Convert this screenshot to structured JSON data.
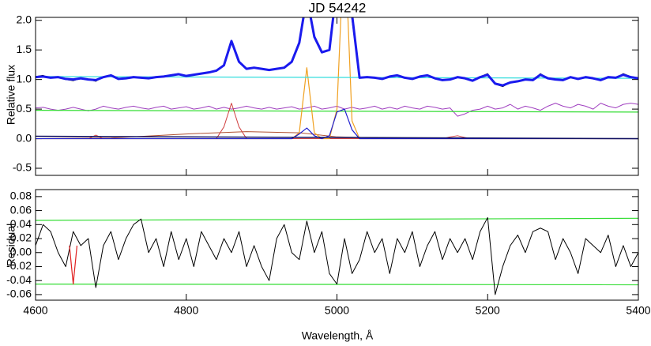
{
  "chart_data": [
    {
      "type": "line",
      "title": "JD 54242",
      "ylabel": "Relative flux",
      "xlim": [
        4600,
        5400
      ],
      "ylim": [
        -0.62,
        2.05
      ],
      "yticks": [
        -0.5,
        {
          "value": 0,
          "label": "0.0"
        },
        0.5,
        {
          "value": 1,
          "label": "1.0"
        },
        1.5,
        {
          "value": 2,
          "label": "2.0"
        }
      ],
      "x": [
        4600,
        4610,
        4620,
        4630,
        4640,
        4650,
        4660,
        4670,
        4680,
        4690,
        4700,
        4710,
        4720,
        4730,
        4740,
        4750,
        4760,
        4770,
        4780,
        4790,
        4800,
        4810,
        4820,
        4830,
        4840,
        4850,
        4860,
        4870,
        4880,
        4890,
        4900,
        4910,
        4920,
        4930,
        4940,
        4950,
        4960,
        4970,
        4980,
        4990,
        5000,
        5010,
        5020,
        5030,
        5040,
        5050,
        5060,
        5070,
        5080,
        5090,
        5100,
        5110,
        5120,
        5130,
        5140,
        5150,
        5160,
        5170,
        5180,
        5190,
        5200,
        5210,
        5220,
        5230,
        5240,
        5250,
        5260,
        5270,
        5280,
        5290,
        5300,
        5310,
        5320,
        5330,
        5340,
        5350,
        5360,
        5370,
        5380,
        5390,
        5400
      ],
      "series": [
        {
          "color": "#a040c0",
          "linewidth": 1,
          "values": [
            0.52,
            0.53,
            0.5,
            0.48,
            0.5,
            0.53,
            0.5,
            0.47,
            0.5,
            0.55,
            0.52,
            0.5,
            0.53,
            0.55,
            0.52,
            0.5,
            0.53,
            0.55,
            0.5,
            0.52,
            0.54,
            0.5,
            0.52,
            0.55,
            0.5,
            0.53,
            0.5,
            0.52,
            0.55,
            0.52,
            0.5,
            0.53,
            0.5,
            0.52,
            0.54,
            0.5,
            0.52,
            0.55,
            0.5,
            0.52,
            0.55,
            0.5,
            0.53,
            0.5,
            0.52,
            0.55,
            0.5,
            0.53,
            0.5,
            0.55,
            0.52,
            0.5,
            0.55,
            0.53,
            0.5,
            0.52,
            0.38,
            0.42,
            0.48,
            0.5,
            0.55,
            0.5,
            0.52,
            0.58,
            0.5,
            0.55,
            0.52,
            0.48,
            0.55,
            0.6,
            0.55,
            0.52,
            0.58,
            0.55,
            0.5,
            0.6,
            0.55,
            0.52,
            0.58,
            0.6,
            0.58
          ]
        },
        {
          "color": "#33dd33",
          "linewidth": 1.2,
          "x": [
            4600,
            5400
          ],
          "values": [
            0.48,
            0.45
          ]
        },
        {
          "color": "#b05030",
          "linewidth": 1,
          "x": [
            4600,
            4700,
            4800,
            4880,
            4950,
            5000,
            5100,
            5200
          ],
          "values": [
            0,
            0.01,
            0.08,
            0.12,
            0.1,
            0.03,
            0,
            0
          ]
        },
        {
          "color": "#d04040",
          "linewidth": 1,
          "values": [
            0,
            0,
            0,
            0,
            0,
            0,
            0,
            0,
            0.06,
            0,
            0,
            0,
            0,
            0,
            0,
            0,
            0,
            0,
            0,
            0,
            0,
            0,
            0,
            0,
            0,
            0.2,
            0.6,
            0.2,
            0,
            0,
            0,
            0,
            0,
            0,
            0,
            0,
            0,
            0,
            0,
            0,
            0,
            0,
            0,
            0,
            0,
            0,
            0,
            0,
            0,
            0,
            0,
            0,
            0,
            0,
            0,
            0.03,
            0.05,
            0.02,
            0,
            0,
            0,
            0,
            0,
            0,
            0,
            0,
            0,
            0,
            0,
            0,
            0,
            0,
            0,
            0,
            0,
            0,
            0,
            0,
            0,
            0,
            0
          ]
        },
        {
          "color": "#f0a020",
          "linewidth": 1.2,
          "values": [
            0,
            0,
            0,
            0,
            0,
            0,
            0,
            0,
            0,
            0,
            0,
            0,
            0,
            0,
            0,
            0,
            0,
            0,
            0,
            0,
            0,
            0,
            0,
            0,
            0,
            0,
            0,
            0,
            0,
            0,
            0,
            0,
            0,
            0,
            0,
            0.1,
            1.2,
            0.1,
            0,
            0,
            0.5,
            3.5,
            0.3,
            0,
            0,
            0,
            0,
            0,
            0,
            0,
            0,
            0,
            0,
            0,
            0,
            0,
            0,
            0,
            0,
            0,
            0,
            0,
            0,
            0,
            0,
            0,
            0,
            0,
            0,
            0,
            0,
            0,
            0,
            0,
            0,
            0,
            0,
            0,
            0,
            0,
            0
          ]
        },
        {
          "color": "#2020d0",
          "linewidth": 1.2,
          "values": [
            0,
            0,
            0,
            0,
            0,
            0,
            0,
            0,
            0,
            0,
            0,
            0,
            0,
            0,
            0,
            0,
            0,
            0,
            0,
            0,
            0,
            0,
            0,
            0,
            0,
            0,
            0,
            0,
            0,
            0,
            0,
            0,
            0,
            0,
            0,
            0.08,
            0.18,
            0.05,
            0,
            0.05,
            0.45,
            0.5,
            0.15,
            0,
            0,
            0,
            0,
            0,
            0,
            0,
            0,
            0,
            0,
            0,
            0,
            0,
            0,
            0,
            0,
            0,
            0,
            0,
            0,
            0,
            0,
            0,
            0,
            0,
            0,
            0,
            0,
            0,
            0,
            0,
            0,
            0,
            0,
            0,
            0,
            0,
            0
          ]
        },
        {
          "color": "#101060",
          "linewidth": 1.5,
          "x": [
            4600,
            5000,
            5400
          ],
          "values": [
            0.04,
            0.02,
            0
          ]
        },
        {
          "color": "#33dddd",
          "linewidth": 1.2,
          "x": [
            4600,
            5400
          ],
          "values": [
            1.05,
            1.02
          ]
        },
        {
          "color": "#000000",
          "linewidth": 1,
          "values": [
            1.05,
            1.07,
            1.02,
            1.05,
            1.0,
            0.98,
            1.02,
            1.0,
            0.97,
            1.05,
            1.08,
            1.0,
            1.02,
            1.05,
            1.03,
            1.02,
            1.04,
            1.05,
            1.08,
            1.1,
            1.05,
            1.08,
            1.1,
            1.12,
            1.15,
            1.25,
            1.62,
            1.3,
            1.18,
            1.2,
            1.18,
            1.15,
            1.18,
            1.2,
            1.3,
            1.6,
            2.3,
            1.7,
            1.45,
            1.5,
            2.5,
            3.0,
            2.0,
            1.02,
            1.05,
            1.03,
            1.0,
            1.05,
            1.08,
            1.03,
            1.0,
            1.05,
            1.08,
            1.02,
            0.98,
            1.0,
            1.05,
            1.02,
            0.97,
            1.05,
            1.1,
            0.92,
            0.88,
            0.95,
            0.97,
            1.0,
            0.98,
            1.1,
            1.02,
            1.0,
            0.98,
            1.05,
            1.0,
            1.05,
            1.02,
            0.98,
            1.05,
            1.03,
            1.1,
            1.05,
            1.03
          ]
        },
        {
          "color": "#1a1aee",
          "linewidth": 3,
          "values": [
            1.04,
            1.05,
            1.03,
            1.04,
            1.01,
            1.0,
            1.02,
            1.0,
            0.99,
            1.04,
            1.07,
            1.01,
            1.02,
            1.04,
            1.03,
            1.02,
            1.04,
            1.05,
            1.07,
            1.09,
            1.06,
            1.08,
            1.1,
            1.12,
            1.15,
            1.24,
            1.65,
            1.3,
            1.18,
            1.2,
            1.18,
            1.16,
            1.18,
            1.2,
            1.3,
            1.62,
            2.4,
            1.72,
            1.46,
            1.5,
            2.6,
            3.2,
            2.1,
            1.03,
            1.04,
            1.03,
            1.01,
            1.05,
            1.07,
            1.03,
            1.01,
            1.05,
            1.07,
            1.02,
            0.99,
            1.0,
            1.04,
            1.02,
            0.98,
            1.04,
            1.08,
            0.93,
            0.9,
            0.95,
            0.97,
            1.0,
            0.99,
            1.08,
            1.02,
            1.0,
            0.99,
            1.04,
            1.01,
            1.04,
            1.02,
            0.99,
            1.04,
            1.03,
            1.08,
            1.04,
            1.02
          ]
        }
      ]
    },
    {
      "type": "line",
      "xlabel": "Wavelength, Å",
      "ylabel": "Residual",
      "xlim": [
        4600,
        5400
      ],
      "xticks": [
        4600,
        4800,
        5000,
        5200,
        5400
      ],
      "ylim": [
        -0.068,
        0.09
      ],
      "yticks": [
        -0.06,
        -0.04,
        -0.02,
        {
          "value": 0,
          "label": "0.00"
        },
        0.02,
        0.04,
        0.06,
        0.08
      ],
      "x": [
        4600,
        4610,
        4620,
        4630,
        4640,
        4650,
        4660,
        4670,
        4680,
        4690,
        4700,
        4710,
        4720,
        4730,
        4740,
        4750,
        4760,
        4770,
        4780,
        4790,
        4800,
        4810,
        4820,
        4830,
        4840,
        4850,
        4860,
        4870,
        4880,
        4890,
        4900,
        4910,
        4920,
        4930,
        4940,
        4950,
        4960,
        4970,
        4980,
        4990,
        5000,
        5010,
        5020,
        5030,
        5040,
        5050,
        5060,
        5070,
        5080,
        5090,
        5100,
        5110,
        5120,
        5130,
        5140,
        5150,
        5160,
        5170,
        5180,
        5190,
        5200,
        5210,
        5220,
        5230,
        5240,
        5250,
        5260,
        5270,
        5280,
        5290,
        5300,
        5310,
        5320,
        5330,
        5340,
        5350,
        5360,
        5370,
        5380,
        5390,
        5400
      ],
      "series": [
        {
          "color": "#33dd33",
          "linewidth": 1.2,
          "x": [
            4600,
            5400
          ],
          "values": [
            0.046,
            0.049
          ]
        },
        {
          "color": "#33dd33",
          "linewidth": 1.2,
          "x": [
            4600,
            5400
          ],
          "values": [
            -0.045,
            -0.046
          ]
        },
        {
          "color": "#000000",
          "linewidth": 1,
          "values": [
            0.01,
            0.04,
            0.03,
            0.0,
            -0.02,
            0.03,
            0.01,
            0.02,
            -0.05,
            0.01,
            0.03,
            -0.01,
            0.02,
            0.04,
            0.048,
            0.0,
            0.02,
            -0.02,
            0.03,
            -0.01,
            0.02,
            -0.02,
            0.03,
            0.01,
            -0.01,
            0.02,
            0.0,
            0.03,
            -0.02,
            0.01,
            -0.02,
            -0.04,
            0.02,
            0.04,
            0.0,
            -0.01,
            0.045,
            0.0,
            0.03,
            -0.03,
            -0.045,
            0.02,
            -0.03,
            -0.01,
            0.03,
            0.0,
            0.02,
            -0.03,
            0.02,
            0.0,
            0.03,
            -0.02,
            0.01,
            0.03,
            -0.01,
            0.02,
            0.0,
            0.02,
            -0.01,
            0.03,
            0.05,
            -0.06,
            -0.02,
            0.01,
            0.025,
            0.0,
            0.03,
            0.035,
            0.03,
            -0.01,
            0.02,
            0.0,
            -0.03,
            0.02,
            0.01,
            0.0,
            0.025,
            -0.02,
            0.01,
            -0.02,
            0.0
          ]
        },
        {
          "color": "#e02020",
          "linewidth": 1.2,
          "x": [
            4645,
            4650,
            4655
          ],
          "values": [
            0.01,
            -0.045,
            0.01
          ]
        }
      ]
    }
  ]
}
